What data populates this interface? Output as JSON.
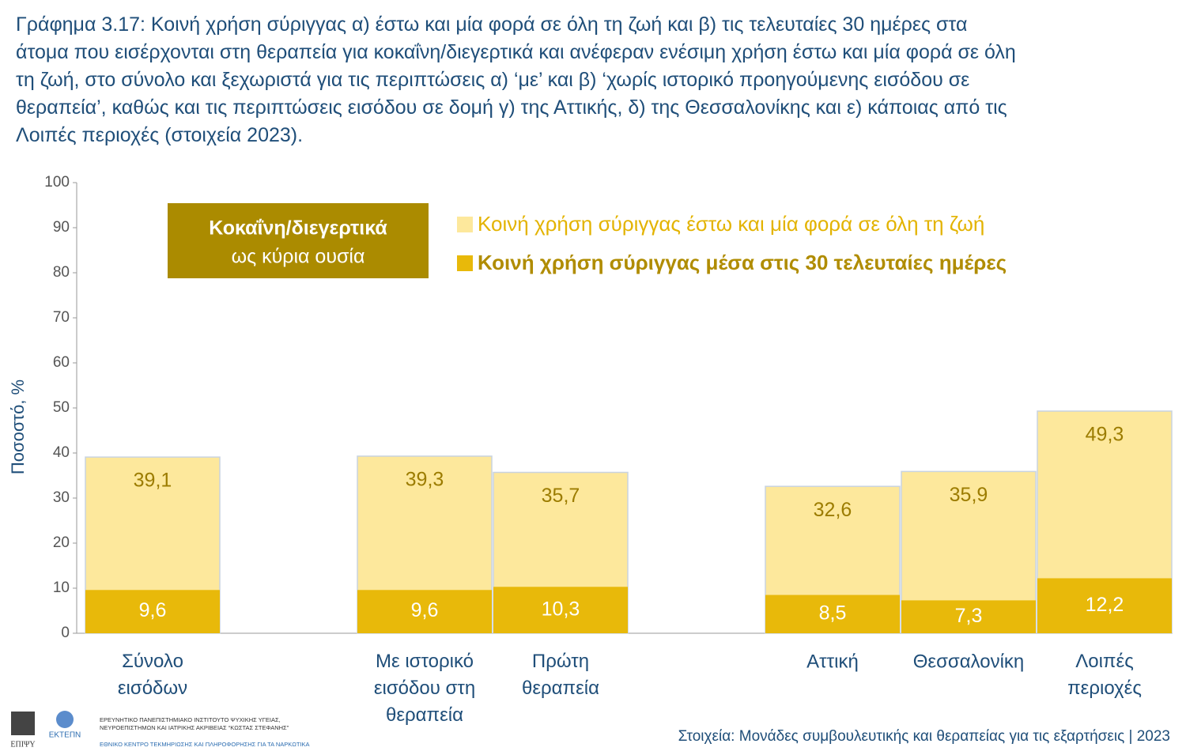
{
  "chart_data": {
    "type": "overlap-bar",
    "title": "Γράφημα 3.17: Κοινή χρήση σύριγγας α) έστω και μία φορά σε όλη τη ζωή και β) τις τελευταίες 30 ημέρες στα\nάτομα που εισέρχονται στη θεραπεία για κοκαΐνη/διεγερτικά και ανέφεραν ενέσιμη χρήση έστω και μία φορά σε όλη\nτη ζωή, στο σύνολο και ξεχωριστά για τις περιπτώσεις α) ‘με’ και β) ‘χωρίς ιστορικό προηγούμενης εισόδου σε\nθεραπεία’, καθώς και τις περιπτώσεις εισόδου σε δομή γ) της Αττικής, δ) της Θεσσαλονίκης και ε) κάποιας από τις\nΛοιπές περιοχές (στοιχεία 2023).",
    "y_label": "Ποσοστό, %",
    "annotation": {
      "title": "Κοκαΐνη/διεγερτικά",
      "subtitle": "ως κύρια ουσία",
      "color": "#ab8b00"
    },
    "categories": [
      "Σύνολο\nεισόδων",
      null,
      "Με ιστορικό\nεισόδου στη\nθεραπεία",
      "Πρώτη\nθεραπεία",
      null,
      "Αττική",
      "Θεσσαλονίκη",
      "Λοιπές\nπεριοχές"
    ],
    "series": [
      {
        "name": "Κοινή χρήση σύριγγας έστω και μία φορά σε όλη τη ζωή",
        "color": "#fde89c",
        "values": [
          39.1,
          null,
          39.3,
          35.7,
          null,
          32.6,
          35.9,
          49.3
        ],
        "value_labels": [
          "39,1",
          null,
          "39,3",
          "35,7",
          null,
          "32,6",
          "35,9",
          "49,3"
        ]
      },
      {
        "name": "Κοινή χρήση σύριγγας μέσα στις 30 τελευταίες ημέρες",
        "color": "#e8b90a",
        "values": [
          9.6,
          null,
          9.6,
          10.3,
          null,
          8.5,
          7.3,
          12.2
        ],
        "value_labels": [
          "9,6",
          null,
          "9,6",
          "10,3",
          null,
          "8,5",
          "7,3",
          "12,2"
        ]
      }
    ],
    "ylim": [
      0,
      100
    ],
    "yticks": [
      0,
      10,
      20,
      30,
      40,
      50,
      60,
      70,
      80,
      90,
      100
    ],
    "grid": false,
    "source": "Στοιχεία: Μονάδες συμβουλευτικής και θεραπείας για τις εξαρτήσεις | 2023",
    "logos": {
      "left": "ΕΠΙΨΥ",
      "right": "ΕΚΤΕΠΝ",
      "institute": "ΕΡΕΥΝΗΤΙΚΟ ΠΑΝΕΠΙΣΤΗΜΙΑΚΟ ΙΝΣΤΙΤΟΥΤΟ ΨΥΧΙΚΗΣ ΥΓΕΙΑΣ,\nΝΕΥΡΟΕΠΙΣΤΗΜΩΝ ΚΑΙ ΙΑΤΡΙΚΗΣ ΑΚΡΙΒΕΙΑΣ “ΚΩΣΤΑΣ ΣΤΕΦΑΝΗΣ”",
      "centre": "ΕΘΝΙΚΟ ΚΕΝΤΡΟ ΤΕΚΜΗΡΙΩΣΗΣ ΚΑΙ ΠΛΗΡΟΦΟΡΗΣΗΣ ΓΙΑ ΤΑ ΝΑΡΚΩΤΙΚΑ"
    }
  }
}
